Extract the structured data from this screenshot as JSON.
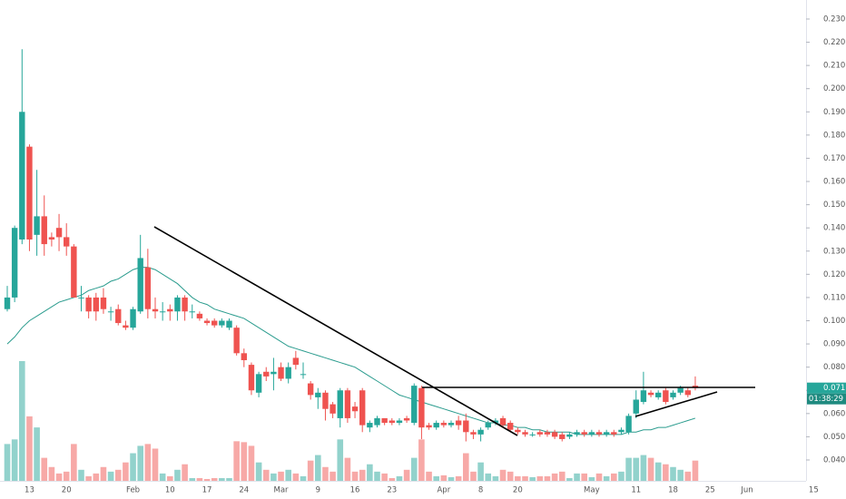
{
  "chart_data": {
    "type": "candlestick",
    "categories": [
      null,
      null,
      null,
      "13",
      null,
      null,
      null,
      null,
      "20",
      null,
      null,
      null,
      null,
      null,
      null,
      null,
      null,
      "Feb",
      null,
      null,
      null,
      null,
      "10",
      null,
      null,
      null,
      null,
      "17",
      null,
      null,
      null,
      null,
      "24",
      null,
      null,
      null,
      null,
      "Mar",
      null,
      null,
      null,
      null,
      "9",
      null,
      null,
      null,
      null,
      "16",
      null,
      null,
      null,
      null,
      "23",
      null,
      null,
      null,
      null,
      null,
      null,
      "Apr",
      null,
      null,
      null,
      null,
      "8",
      null,
      null,
      null,
      null,
      "20",
      null,
      null,
      null,
      null,
      null,
      null,
      null,
      null,
      null,
      "May",
      null,
      null,
      null,
      null,
      null,
      "11",
      null,
      null,
      null,
      null,
      "18",
      null,
      null,
      null,
      null,
      "25",
      null,
      null,
      null,
      null,
      "Jun",
      null,
      null,
      null,
      null,
      null,
      null,
      null,
      null,
      "15"
    ],
    "open": [
      0.105,
      0.11,
      0.135,
      0.175,
      0.137,
      0.145,
      0.136,
      0.14,
      0.136,
      0.132,
      0.11,
      0.11,
      0.11,
      0.11,
      0.104,
      0.105,
      0.098,
      0.097,
      0.104,
      0.123,
      0.105,
      0.104,
      0.105,
      0.104,
      0.11,
      0.104,
      0.103,
      0.1,
      0.1,
      0.098,
      0.097,
      0.097,
      0.086,
      0.081,
      0.069,
      0.078,
      0.077,
      0.08,
      0.075,
      0.084,
      0.077,
      0.073,
      0.067,
      0.069,
      0.064,
      0.058,
      0.07,
      0.063,
      0.07,
      0.054,
      0.055,
      0.058,
      0.057,
      0.056,
      0.058,
      0.056,
      0.071,
      0.055,
      0.054,
      0.056,
      0.055,
      0.057,
      0.057,
      0.052,
      0.051,
      0.054,
      0.056,
      0.058,
      0.056,
      0.053,
      0.052,
      0.051,
      0.052,
      0.052,
      0.052,
      0.051,
      0.05,
      0.051,
      0.052,
      0.051,
      0.052,
      0.051,
      0.052,
      0.052,
      0.052,
      0.06,
      0.065,
      0.069,
      0.067,
      0.07,
      0.067,
      0.069,
      0.07,
      0.072,
      null,
      null,
      null,
      null,
      null,
      null,
      null,
      null,
      null,
      null,
      null,
      null,
      null,
      null,
      null,
      null
    ],
    "high": [
      0.115,
      0.141,
      0.217,
      0.176,
      0.165,
      0.154,
      0.138,
      0.146,
      0.142,
      0.133,
      0.115,
      0.111,
      0.112,
      0.114,
      0.106,
      0.107,
      0.1,
      0.106,
      0.137,
      0.131,
      0.11,
      0.108,
      0.107,
      0.111,
      0.111,
      0.107,
      0.104,
      0.101,
      0.101,
      0.101,
      0.101,
      0.098,
      0.088,
      0.082,
      0.078,
      0.08,
      0.084,
      0.082,
      0.082,
      0.087,
      0.082,
      0.074,
      0.071,
      0.07,
      0.065,
      0.071,
      0.071,
      0.065,
      0.071,
      0.057,
      0.059,
      0.058,
      0.058,
      0.058,
      0.059,
      0.073,
      0.072,
      0.056,
      0.057,
      0.057,
      0.057,
      0.059,
      0.06,
      0.053,
      0.054,
      0.057,
      0.058,
      0.059,
      0.057,
      0.054,
      0.053,
      0.052,
      0.053,
      0.053,
      0.053,
      0.052,
      0.052,
      0.053,
      0.053,
      0.053,
      0.053,
      0.053,
      0.053,
      0.054,
      0.06,
      0.07,
      0.078,
      0.07,
      0.07,
      0.071,
      0.07,
      0.072,
      0.071,
      0.076,
      null,
      null,
      null,
      null,
      null,
      null,
      null,
      null,
      null,
      null,
      null,
      null,
      null,
      null,
      null,
      null
    ],
    "low": [
      0.104,
      0.108,
      0.133,
      0.13,
      0.128,
      0.128,
      0.132,
      0.13,
      0.128,
      0.11,
      0.104,
      0.101,
      0.1,
      0.103,
      0.1,
      0.098,
      0.096,
      0.096,
      0.103,
      0.101,
      0.101,
      0.1,
      0.1,
      0.1,
      0.1,
      0.101,
      0.1,
      0.098,
      0.097,
      0.097,
      0.096,
      0.085,
      0.08,
      0.068,
      0.067,
      0.074,
      0.07,
      0.074,
      0.073,
      0.079,
      0.075,
      0.066,
      0.062,
      0.057,
      0.058,
      0.054,
      0.056,
      0.058,
      0.052,
      0.052,
      0.054,
      0.055,
      0.055,
      0.055,
      0.056,
      0.055,
      0.049,
      0.053,
      0.053,
      0.054,
      0.054,
      0.053,
      0.048,
      0.049,
      0.048,
      0.053,
      0.055,
      0.054,
      0.052,
      0.051,
      0.05,
      0.05,
      0.05,
      0.05,
      0.049,
      0.048,
      0.049,
      0.05,
      0.05,
      0.05,
      0.05,
      0.05,
      0.05,
      0.051,
      0.051,
      0.058,
      0.064,
      0.067,
      0.066,
      0.064,
      0.066,
      0.068,
      0.067,
      0.07,
      null,
      null,
      null,
      null,
      null,
      null,
      null,
      null,
      null,
      null,
      null,
      null,
      null,
      null,
      null,
      null
    ],
    "close": [
      0.11,
      0.14,
      0.19,
      0.135,
      0.145,
      0.133,
      0.135,
      0.136,
      0.132,
      0.11,
      0.11,
      0.104,
      0.104,
      0.105,
      0.104,
      0.099,
      0.097,
      0.105,
      0.127,
      0.105,
      0.104,
      0.104,
      0.104,
      0.11,
      0.104,
      0.104,
      0.101,
      0.099,
      0.098,
      0.1,
      0.1,
      0.086,
      0.083,
      0.07,
      0.077,
      0.076,
      0.078,
      0.075,
      0.08,
      0.081,
      0.077,
      0.068,
      0.069,
      0.062,
      0.06,
      0.07,
      0.058,
      0.061,
      0.055,
      0.056,
      0.058,
      0.056,
      0.056,
      0.057,
      0.057,
      0.072,
      0.054,
      0.054,
      0.056,
      0.055,
      0.056,
      0.055,
      0.052,
      0.051,
      0.053,
      0.056,
      0.057,
      0.055,
      0.053,
      0.052,
      0.051,
      0.051,
      0.051,
      0.051,
      0.05,
      0.049,
      0.051,
      0.052,
      0.051,
      0.052,
      0.051,
      0.052,
      0.051,
      0.053,
      0.059,
      0.066,
      0.07,
      0.068,
      0.069,
      0.065,
      0.069,
      0.071,
      0.068,
      0.071,
      null,
      null,
      null,
      null,
      null,
      null,
      null,
      null,
      null,
      null,
      null,
      null,
      null,
      null,
      null,
      null
    ],
    "ma": [
      0.09,
      0.093,
      0.097,
      0.1,
      0.102,
      0.104,
      0.106,
      0.108,
      0.109,
      0.11,
      0.111,
      0.113,
      0.114,
      0.115,
      0.117,
      0.118,
      0.12,
      0.122,
      0.123,
      0.123,
      0.122,
      0.12,
      0.118,
      0.116,
      0.113,
      0.11,
      0.108,
      0.107,
      0.105,
      0.104,
      0.103,
      0.102,
      0.101,
      0.099,
      0.097,
      0.095,
      0.093,
      0.091,
      0.089,
      0.088,
      0.087,
      0.086,
      0.085,
      0.084,
      0.083,
      0.082,
      0.081,
      0.08,
      0.078,
      0.076,
      0.074,
      0.072,
      0.07,
      0.068,
      0.067,
      0.066,
      0.065,
      0.064,
      0.063,
      0.062,
      0.061,
      0.06,
      0.059,
      0.058,
      0.057,
      0.056,
      0.056,
      0.055,
      0.055,
      0.054,
      0.054,
      0.053,
      0.053,
      0.052,
      0.052,
      0.052,
      0.052,
      0.051,
      0.051,
      0.051,
      0.051,
      0.051,
      0.051,
      0.051,
      0.052,
      0.052,
      0.053,
      0.053,
      0.054,
      0.054,
      0.055,
      0.056,
      0.057,
      0.058,
      null,
      null,
      null,
      null,
      null,
      null,
      null,
      null,
      null,
      null,
      null,
      null,
      null,
      null,
      null,
      null
    ],
    "volume": [
      40,
      45,
      130,
      70,
      58,
      25,
      15,
      8,
      10,
      40,
      12,
      5,
      8,
      15,
      10,
      12,
      20,
      30,
      38,
      40,
      35,
      8,
      5,
      12,
      18,
      3,
      3,
      2,
      3,
      3,
      3,
      43,
      42,
      38,
      20,
      12,
      8,
      10,
      12,
      8,
      5,
      22,
      28,
      15,
      10,
      45,
      25,
      10,
      12,
      18,
      10,
      8,
      3,
      5,
      12,
      25,
      45,
      10,
      5,
      6,
      4,
      5,
      30,
      10,
      20,
      8,
      5,
      12,
      10,
      5,
      5,
      4,
      5,
      5,
      8,
      10,
      3,
      8,
      8,
      4,
      8,
      5,
      8,
      10,
      25,
      25,
      28,
      25,
      20,
      18,
      15,
      12,
      10,
      22,
      null,
      null,
      null,
      null,
      null,
      null,
      null,
      null,
      null,
      null,
      null,
      null,
      null,
      null,
      null,
      null
    ],
    "up_color": "#26a69a",
    "down_color": "#ef5350",
    "ma_color": "#2b9c8e",
    "ylim": [
      0.031,
      0.2382
    ],
    "yticks": [
      {
        "value": 0.04,
        "label": "0.040"
      },
      {
        "value": 0.05,
        "label": "0.050"
      },
      {
        "value": 0.06,
        "label": "0.060"
      },
      {
        "value": 0.07,
        "label": "0.070"
      },
      {
        "value": 0.08,
        "label": "0.080"
      },
      {
        "value": 0.09,
        "label": "0.090"
      },
      {
        "value": 0.1,
        "label": "0.100"
      },
      {
        "value": 0.11,
        "label": "0.110"
      },
      {
        "value": 0.12,
        "label": "0.120"
      },
      {
        "value": 0.13,
        "label": "0.130"
      },
      {
        "value": 0.14,
        "label": "0.140"
      },
      {
        "value": 0.15,
        "label": "0.150"
      },
      {
        "value": 0.16,
        "label": "0.160"
      },
      {
        "value": 0.17,
        "label": "0.170"
      },
      {
        "value": 0.18,
        "label": "0.180"
      },
      {
        "value": 0.19,
        "label": "0.190"
      },
      {
        "value": 0.2,
        "label": "0.200"
      },
      {
        "value": 0.21,
        "label": "0.210"
      },
      {
        "value": 0.22,
        "label": "0.220"
      },
      {
        "value": 0.23,
        "label": "0.230"
      }
    ],
    "grid": false,
    "last_price": 0.071,
    "countdown": "01:38:29"
  }
}
